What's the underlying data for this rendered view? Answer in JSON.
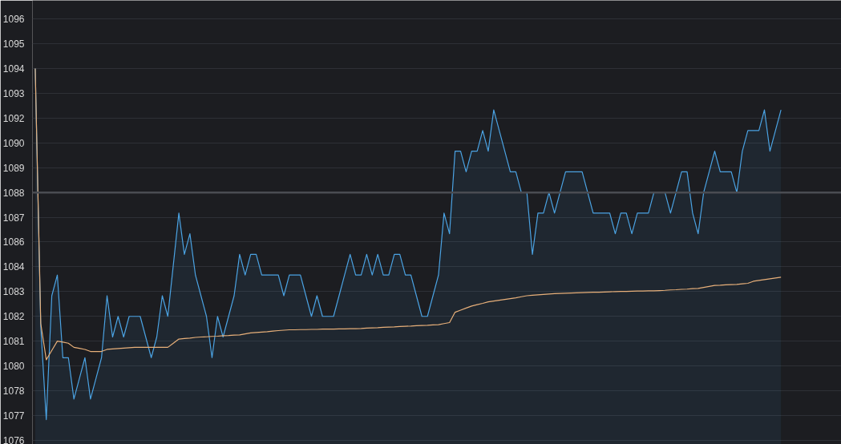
{
  "chart_data": {
    "type": "line",
    "categories": [
      null,
      null,
      null,
      null,
      null,
      null,
      null,
      null,
      null,
      null,
      null,
      null,
      null,
      null,
      null,
      null,
      null,
      null,
      null,
      null,
      null,
      null,
      null,
      null,
      null,
      null,
      null,
      null,
      null,
      null,
      null,
      null,
      null,
      null,
      null,
      null,
      null,
      null,
      null,
      null,
      null,
      null,
      null,
      null,
      null,
      null,
      null,
      null,
      null,
      null,
      null,
      null,
      null,
      null,
      null,
      null,
      null,
      null,
      null,
      null,
      null,
      null,
      null,
      null,
      null,
      null,
      null,
      null,
      null,
      null,
      null,
      null,
      null,
      null,
      null,
      null,
      null,
      null,
      null,
      null,
      null,
      null,
      null,
      null,
      null,
      null,
      null,
      null,
      null,
      null,
      null,
      null,
      null,
      null,
      null,
      null,
      null,
      null,
      null,
      null,
      null,
      null,
      null,
      null,
      null,
      null,
      null,
      null,
      null,
      null,
      null,
      null,
      null,
      null,
      null,
      null,
      null,
      null,
      null,
      null,
      null,
      null,
      null,
      null,
      null,
      null,
      null,
      null,
      null,
      null,
      null,
      null,
      null,
      null,
      null,
      null
    ],
    "ylim": [
      1075.8,
      1097.3
    ],
    "yticks": [
      {
        "value": 1076.0,
        "label": "1076"
      },
      {
        "value": 1077.2,
        "label": "1077"
      },
      {
        "value": 1078.4,
        "label": "1078"
      },
      {
        "value": 1079.6,
        "label": "1080"
      },
      {
        "value": 1080.8,
        "label": "1081"
      },
      {
        "value": 1082.0,
        "label": "1082"
      },
      {
        "value": 1083.2,
        "label": "1083"
      },
      {
        "value": 1084.4,
        "label": "1084"
      },
      {
        "value": 1085.6,
        "label": "1086"
      },
      {
        "value": 1086.8,
        "label": "1087"
      },
      {
        "value": 1088.0,
        "label": "1088"
      },
      {
        "value": 1089.2,
        "label": "1089"
      },
      {
        "value": 1090.4,
        "label": "1090"
      },
      {
        "value": 1091.6,
        "label": "1092"
      },
      {
        "value": 1092.8,
        "label": "1093"
      },
      {
        "value": 1094.0,
        "label": "1094"
      },
      {
        "value": 1095.2,
        "label": "1095"
      },
      {
        "value": 1096.4,
        "label": "1096"
      }
    ],
    "tick_labels": "y",
    "grid": "y",
    "ref_lines": [
      {
        "axis": "y",
        "value": 1088.0,
        "color": "#4a4c52"
      }
    ],
    "series": [
      {
        "type": "area",
        "color": "#4ba3e3",
        "values": [
          1094,
          1081.5,
          1077,
          1083,
          1084,
          1080,
          1080,
          1078,
          1079,
          1080,
          1078,
          1079,
          1080,
          1083,
          1081,
          1082,
          1081,
          1082,
          1082,
          1082,
          1081,
          1080,
          1081,
          1083,
          1082,
          1084.5,
          1087,
          1085,
          1086,
          1084,
          1083,
          1082,
          1080,
          1082,
          1081,
          1082,
          1083,
          1085,
          1084,
          1085,
          1085,
          1084,
          1084,
          1084,
          1084,
          1083,
          1084,
          1084,
          1084,
          1083,
          1082,
          1083,
          1082,
          1082,
          1082,
          1083,
          1084,
          1085,
          1084,
          1084,
          1085,
          1084,
          1085,
          1084,
          1084,
          1085,
          1085,
          1084,
          1084,
          1083,
          1082,
          1082,
          1083,
          1084,
          1087,
          1086,
          1090,
          1090,
          1089,
          1090,
          1090,
          1091,
          1090,
          1092,
          1091,
          1090,
          1089,
          1089,
          1088,
          1088,
          1085,
          1087,
          1087,
          1088,
          1087,
          1088,
          1089,
          1089,
          1089,
          1089,
          1088,
          1087,
          1087,
          1087,
          1087,
          1086,
          1087,
          1087,
          1086,
          1087,
          1087,
          1087,
          1088,
          1088,
          1088,
          1087,
          1088,
          1089,
          1089,
          1087,
          1086,
          1088,
          1089,
          1090,
          1089,
          1089,
          1089,
          1088,
          1090,
          1091,
          1091,
          1091,
          1092,
          1090,
          1091,
          1092
        ]
      },
      {
        "color": "#e8b07a",
        "values": [
          1094.0,
          1081.65,
          1079.9,
          1080.35,
          1080.8,
          1080.75,
          1080.7,
          1080.5,
          1080.45,
          1080.4,
          1080.3,
          1080.3,
          1080.3,
          1080.4,
          1080.42,
          1080.44,
          1080.46,
          1080.48,
          1080.5,
          1080.5,
          1080.5,
          1080.5,
          1080.5,
          1080.5,
          1080.5,
          1080.7,
          1080.9,
          1080.93,
          1080.95,
          1080.98,
          1081.0,
          1081.01,
          1081.03,
          1081.04,
          1081.06,
          1081.07,
          1081.09,
          1081.1,
          1081.15,
          1081.2,
          1081.22,
          1081.24,
          1081.26,
          1081.29,
          1081.31,
          1081.33,
          1081.35,
          1081.35,
          1081.36,
          1081.36,
          1081.37,
          1081.37,
          1081.38,
          1081.38,
          1081.38,
          1081.39,
          1081.39,
          1081.4,
          1081.4,
          1081.41,
          1081.43,
          1081.44,
          1081.45,
          1081.47,
          1081.48,
          1081.49,
          1081.51,
          1081.52,
          1081.53,
          1081.55,
          1081.56,
          1081.57,
          1081.59,
          1081.6,
          1081.65,
          1081.7,
          1082.2,
          1082.3,
          1082.4,
          1082.5,
          1082.57,
          1082.63,
          1082.7,
          1082.74,
          1082.78,
          1082.82,
          1082.86,
          1082.9,
          1082.95,
          1083.0,
          1083.02,
          1083.04,
          1083.06,
          1083.08,
          1083.1,
          1083.11,
          1083.12,
          1083.13,
          1083.14,
          1083.15,
          1083.16,
          1083.17,
          1083.17,
          1083.18,
          1083.19,
          1083.2,
          1083.21,
          1083.21,
          1083.22,
          1083.23,
          1083.23,
          1083.24,
          1083.24,
          1083.25,
          1083.26,
          1083.28,
          1083.29,
          1083.31,
          1083.32,
          1083.34,
          1083.35,
          1083.4,
          1083.45,
          1083.5,
          1083.51,
          1083.53,
          1083.54,
          1083.55,
          1083.58,
          1083.6,
          1083.7,
          1083.74,
          1083.78,
          1083.82,
          1083.86,
          1083.9
        ]
      }
    ]
  }
}
